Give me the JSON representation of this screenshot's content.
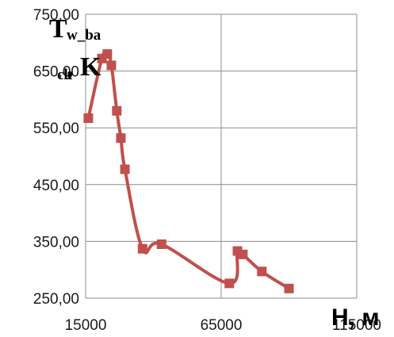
{
  "chart_data": {
    "type": "line",
    "x": [
      16000,
      21000,
      23000,
      24500,
      26500,
      28000,
      29500,
      36000,
      43000,
      68000,
      71000,
      73000,
      80000,
      90000
    ],
    "series": [
      {
        "values": [
          567,
          672,
          680,
          660,
          580,
          532,
          477,
          337,
          345,
          276,
          333,
          327,
          297,
          267
        ],
        "color": "#c0504d"
      }
    ],
    "ylabel_main": "T",
    "ylabel_sub_top": "w_ba",
    "ylabel_sub_bottom": "ck",
    "ylabel_unit": ", K",
    "xlabel": "H, м",
    "xlim": [
      15000,
      115000
    ],
    "ylim": [
      250,
      750
    ],
    "xticks": [
      "15000",
      "65000",
      "115000"
    ],
    "yticks": [
      "750,00",
      "650,00",
      "550,00",
      "450,00",
      "350,00",
      "250,00"
    ],
    "xtick_values": [
      15000,
      65000,
      115000
    ],
    "ytick_values": [
      750,
      650,
      550,
      450,
      350,
      250
    ],
    "grid": true,
    "legend": "none"
  }
}
